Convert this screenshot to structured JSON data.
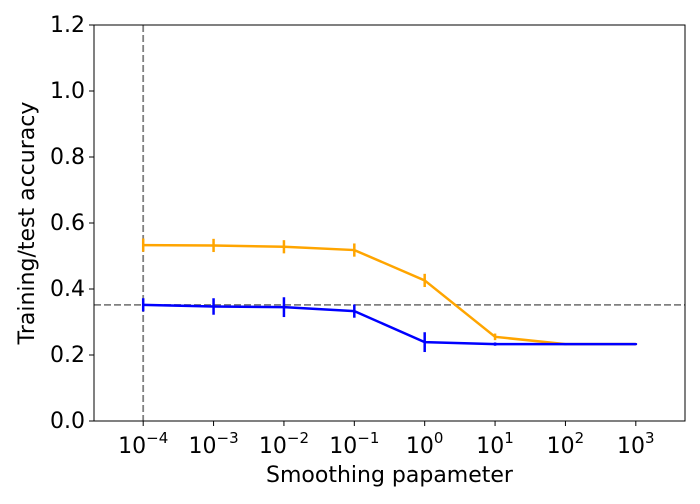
{
  "chart_data": {
    "type": "line",
    "title": "",
    "xlabel": "Smoothing papameter",
    "ylabel": "Training/test accuracy",
    "xscale": "log",
    "x": [
      0.0001,
      0.001,
      0.01,
      0.1,
      1,
      10,
      100,
      1000
    ],
    "xtick_labels": [
      {
        "base": "10",
        "exp": "−4"
      },
      {
        "base": "10",
        "exp": "−3"
      },
      {
        "base": "10",
        "exp": "−2"
      },
      {
        "base": "10",
        "exp": "−1"
      },
      {
        "base": "10",
        "exp": "0"
      },
      {
        "base": "10",
        "exp": "1"
      },
      {
        "base": "10",
        "exp": "2"
      },
      {
        "base": "10",
        "exp": "3"
      }
    ],
    "xlim": [
      2e-05,
      5000
    ],
    "ylim": [
      0.0,
      1.2
    ],
    "yticks": [
      0.0,
      0.2,
      0.4,
      0.6,
      0.8,
      1.0,
      1.2
    ],
    "ytick_labels": [
      "0.0",
      "0.2",
      "0.4",
      "0.6",
      "0.8",
      "1.0",
      "1.2"
    ],
    "grid": false,
    "series": [
      {
        "color": "#ffa500",
        "values": [
          0.533,
          0.532,
          0.528,
          0.518,
          0.426,
          0.255,
          0.233,
          0.233
        ],
        "errors": [
          0.02,
          0.02,
          0.02,
          0.02,
          0.02,
          0.01,
          0.003,
          0.003
        ]
      },
      {
        "color": "#0000ff",
        "values": [
          0.352,
          0.347,
          0.345,
          0.333,
          0.239,
          0.233,
          0.233,
          0.233
        ],
        "errors": [
          0.02,
          0.025,
          0.03,
          0.02,
          0.03,
          0.005,
          0.003,
          0.003
        ]
      }
    ],
    "reference_lines": [
      {
        "orientation": "horizontal",
        "value": 0.352,
        "color": "#808080",
        "style": "dashed"
      },
      {
        "orientation": "vertical",
        "value": 0.0001,
        "color": "#808080",
        "style": "dashed"
      }
    ]
  }
}
